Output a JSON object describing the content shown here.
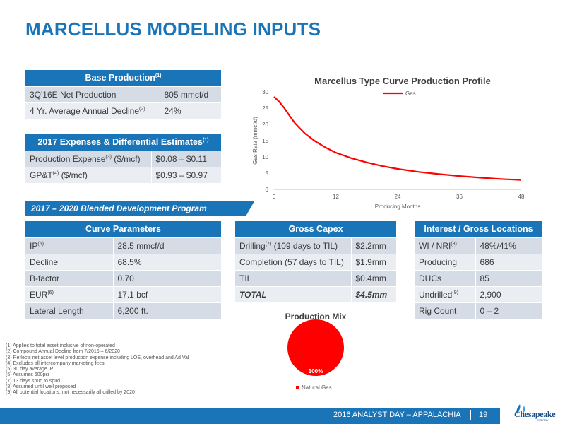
{
  "title": "MARCELLUS MODELING INPUTS",
  "base_production": {
    "header": "Base Production",
    "header_sup": "(1)",
    "rows": [
      {
        "label": "3Q'16E Net Production",
        "sup": "",
        "value": "805 mmcf/d"
      },
      {
        "label": "4 Yr. Average Annual Decline",
        "sup": "(2)",
        "value": "24%"
      }
    ]
  },
  "expenses": {
    "header": "2017 Expenses & Differential Estimates",
    "header_sup": "(1)",
    "rows": [
      {
        "label": "Production Expense",
        "sup": "(3)",
        "suffix": " ($/mcf)",
        "value": "$0.08 – $0.11"
      },
      {
        "label": "GP&T",
        "sup": "(4)",
        "suffix": " ($/mcf)",
        "value": "$0.93 – $0.97"
      }
    ]
  },
  "program_banner": "2017 – 2020 Blended Development Program",
  "curve_parameters": {
    "header": "Curve Parameters",
    "rows": [
      {
        "label": "IP",
        "sup": "(5)",
        "value": "28.5 mmcf/d"
      },
      {
        "label": "Decline",
        "sup": "",
        "value": "68.5%"
      },
      {
        "label": "B-factor",
        "sup": "",
        "value": "0.70"
      },
      {
        "label": "EUR",
        "sup": "(6)",
        "value": "17.1 bcf"
      },
      {
        "label": "Lateral Length",
        "sup": "",
        "value": "6,200 ft."
      }
    ]
  },
  "gross_capex": {
    "header": "Gross Capex",
    "rows": [
      {
        "label": "Drilling",
        "sup": "(7)",
        "suffix": " (109 days to TIL)",
        "value": "$2.2mm"
      },
      {
        "label": "Completion (57 days to TIL)",
        "sup": "",
        "suffix": "",
        "value": "$1.9mm"
      },
      {
        "label": "TIL",
        "sup": "",
        "suffix": "",
        "value": "$0.4mm"
      },
      {
        "label": "TOTAL",
        "sup": "",
        "suffix": "",
        "value": "$4.5mm"
      }
    ]
  },
  "interest": {
    "header": "Interest / Gross Locations",
    "rows": [
      {
        "label": "WI / NRI",
        "sup": "(8)",
        "value": "48%/41%"
      },
      {
        "label": "Producing",
        "sup": "",
        "value": "686"
      },
      {
        "label": "DUCs",
        "sup": "",
        "value": "85"
      },
      {
        "label": "Undrilled",
        "sup": "(9)",
        "value": "2,900"
      },
      {
        "label": "Rig Count",
        "sup": "",
        "value": "0 – 2"
      }
    ]
  },
  "chart_data": [
    {
      "type": "line",
      "title": "Marcellus Type Curve Production Profile",
      "xlabel": "Producing Months",
      "ylabel": "Gas Rate (mmcf/d)",
      "xlim": [
        0,
        48
      ],
      "ylim": [
        0,
        30
      ],
      "x_ticks": [
        "0",
        "12",
        "24",
        "36",
        "48"
      ],
      "y_ticks": [
        "0",
        "5",
        "10",
        "15",
        "20",
        "25",
        "30"
      ],
      "legend_position": "top-right",
      "series": [
        {
          "name": "Gas",
          "color": "#ff0000",
          "x": [
            0,
            1,
            2,
            3,
            4,
            5,
            6,
            8,
            10,
            12,
            15,
            18,
            21,
            24,
            28,
            32,
            36,
            40,
            44,
            48
          ],
          "y": [
            28.5,
            27.0,
            25.0,
            22.7,
            20.5,
            18.8,
            17.2,
            14.8,
            12.9,
            11.3,
            9.6,
            8.3,
            7.2,
            6.3,
            5.4,
            4.7,
            4.1,
            3.6,
            3.2,
            2.9
          ]
        }
      ]
    },
    {
      "type": "pie",
      "title": "Production Mix",
      "legend_position": "bottom",
      "slices": [
        {
          "name": "Natural Gas",
          "value": 100,
          "label": "100%",
          "color": "#ff0000"
        }
      ]
    }
  ],
  "footnotes": [
    "(1)   Applies to total asset inclusive of non-operated",
    "(2)   Compound Annual Decline from 7/2016 – 6/2020",
    "(3)   Reflects net asset level production expense including LOE, overhead and Ad Val",
    "(4)   Excludes all intercompany marketing fees",
    "(5)   30 day average IP",
    "(6)   Assumes 600psi",
    "(7)   13 days spud to spud",
    "(8)   Assumed until well proposed",
    "(9)   All potential locations, not necessarily all drilled by 2020"
  ],
  "footer": {
    "event": "2016 ANALYST DAY – APPALACHIA",
    "page": "19",
    "logo_text": "Chesapeake",
    "logo_sub": "ENERGY",
    "colors": {
      "brand_blue": "#1a75b8",
      "gas_red": "#ff0000"
    }
  }
}
